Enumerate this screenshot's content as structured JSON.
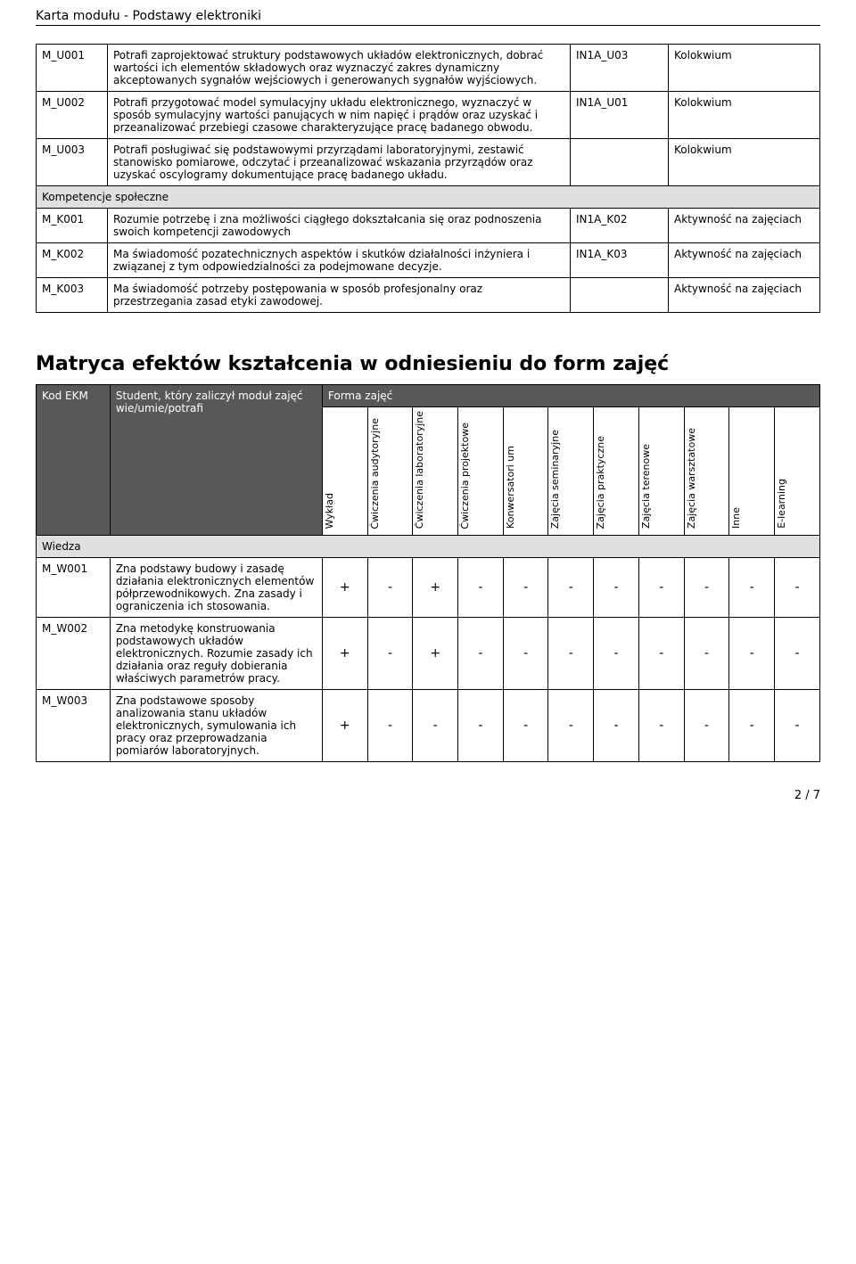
{
  "page_header": "Karta modułu - Podstawy elektroniki",
  "page_number": "2 / 7",
  "outcomes_table": {
    "rows": [
      {
        "code": "M_U001",
        "desc": "Potrafi zaprojektować struktury podstawowych układów elektronicznych, dobrać wartości ich elementów składowych oraz wyznaczyć zakres dynamiczny akceptowanych sygnałów wejściowych i generowanych sygnałów wyjściowych.",
        "ref": "IN1A_U03",
        "eval": "Kolokwium"
      },
      {
        "code": "M_U002",
        "desc": "Potrafi przygotować model symulacyjny układu elektronicznego, wyznaczyć w sposób symulacyjny wartości panujących w nim napięć i prądów oraz uzyskać i przeanalizować przebiegi czasowe charakteryzujące pracę badanego obwodu.",
        "ref": "IN1A_U01",
        "eval": "Kolokwium"
      },
      {
        "code": "M_U003",
        "desc": "Potrafi posługiwać się podstawowymi przyrządami laboratoryjnymi, zestawić stanowisko pomiarowe, odczytać i przeanalizować wskazania przyrządów oraz uzyskać oscylogramy dokumentujące pracę badanego układu.",
        "ref": "",
        "eval": "Kolokwium"
      }
    ],
    "section_social": "Kompetencje społeczne",
    "social_rows": [
      {
        "code": "M_K001",
        "desc": "Rozumie potrzebę i zna możliwości ciągłego dokształcania się oraz podnoszenia swoich kompetencji zawodowych",
        "ref": "IN1A_K02",
        "eval": "Aktywność na zajęciach"
      },
      {
        "code": "M_K002",
        "desc": "Ma świadomość pozatechnicznych aspektów i skutków działalności inżyniera i związanej z tym odpowiedzialności za podejmowane decyzje.",
        "ref": "IN1A_K03",
        "eval": "Aktywność na zajęciach"
      },
      {
        "code": "M_K003",
        "desc": "Ma świadomość potrzeby postępowania w sposób profesjonalny oraz przestrzegania zasad etyki zawodowej.",
        "ref": "",
        "eval": "Aktywność na zajęciach"
      }
    ]
  },
  "matrix": {
    "heading": "Matryca efektów kształcenia w odniesieniu do form zajęć",
    "header_code": "Kod EKM",
    "header_student": "Student, który zaliczył moduł zajęć wie/umie/potrafi",
    "header_form": "Forma zajęć",
    "form_columns": [
      "Wykład",
      "Ćwiczenia\naudytoryjne",
      "Ćwiczenia\nlaboratoryjne",
      "Ćwiczenia\nprojektowe",
      "Konwersatori\num",
      "Zajęcia\nseminaryjne",
      "Zajęcia\npraktyczne",
      "Zajęcia\nterenowe",
      "Zajęcia\nwarsztatowe",
      "Inne",
      "E-learning"
    ],
    "section_knowledge": "Wiedza",
    "rows": [
      {
        "code": "M_W001",
        "desc": "Zna podstawy budowy i zasadę działania elektronicznych elementów półprzewodnikowych. Zna zasady i ograniczenia ich stosowania.",
        "marks": [
          "+",
          "-",
          "+",
          "-",
          "-",
          "-",
          "-",
          "-",
          "-",
          "-",
          "-"
        ]
      },
      {
        "code": "M_W002",
        "desc": "Zna metodykę konstruowania podstawowych układów elektronicznych. Rozumie zasady ich działania oraz reguły dobierania właściwych parametrów pracy.",
        "marks": [
          "+",
          "-",
          "+",
          "-",
          "-",
          "-",
          "-",
          "-",
          "-",
          "-",
          "-"
        ]
      },
      {
        "code": "M_W003",
        "desc": "Zna podstawowe sposoby analizowania stanu układów elektronicznych, symulowania ich pracy oraz przeprowadzania pomiarów laboratoryjnych.",
        "marks": [
          "+",
          "-",
          "-",
          "-",
          "-",
          "-",
          "-",
          "-",
          "-",
          "-",
          "-"
        ]
      }
    ]
  }
}
